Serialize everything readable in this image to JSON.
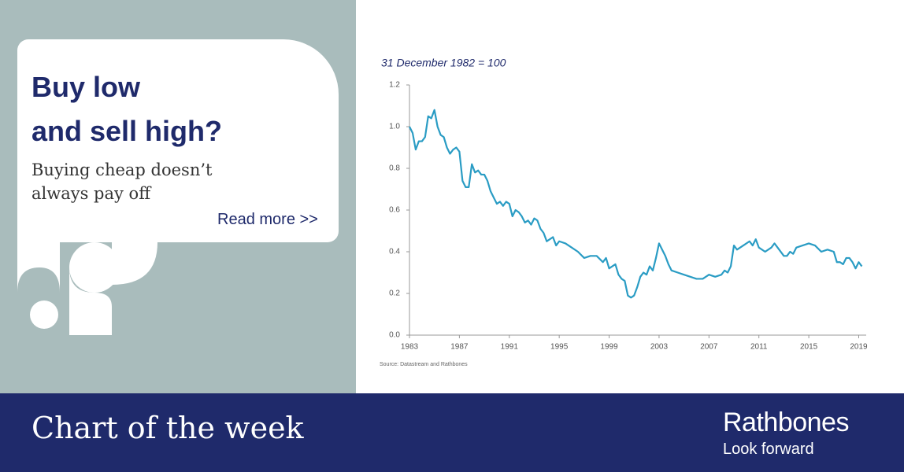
{
  "panel": {
    "headline": [
      "Buy low",
      "and sell high?"
    ],
    "subhead": [
      "Buying cheap doesn’t",
      "always pay off"
    ],
    "link": "Read more >>"
  },
  "footer": {
    "title": "Chart of the week",
    "brand": "Rathbones",
    "tagline": "Look forward"
  },
  "chart_data": {
    "type": "line",
    "subtitle": "31 December 1982 = 100",
    "source": "Source: Datastream and Rathbones",
    "color": "#2a9cc4",
    "x": [
      1983.0,
      1983.25,
      1983.5,
      1983.75,
      1984.0,
      1984.25,
      1984.5,
      1984.75,
      1985.0,
      1985.25,
      1985.5,
      1985.75,
      1986.0,
      1986.25,
      1986.5,
      1986.75,
      1987.0,
      1987.25,
      1987.5,
      1987.75,
      1988.0,
      1988.25,
      1988.5,
      1988.75,
      1989.0,
      1989.25,
      1989.5,
      1989.75,
      1990.0,
      1990.25,
      1990.5,
      1990.75,
      1991.0,
      1991.25,
      1991.5,
      1991.75,
      1992.0,
      1992.25,
      1992.5,
      1992.75,
      1993.0,
      1993.25,
      1993.5,
      1993.75,
      1994.0,
      1994.25,
      1994.5,
      1994.75,
      1995.0,
      1995.5,
      1996.0,
      1996.5,
      1997.0,
      1997.5,
      1998.0,
      1998.5,
      1998.75,
      1999.0,
      1999.5,
      1999.75,
      2000.0,
      2000.25,
      2000.5,
      2000.75,
      2001.0,
      2001.25,
      2001.5,
      2001.75,
      2002.0,
      2002.25,
      2002.5,
      2002.75,
      2003.0,
      2003.25,
      2003.5,
      2003.75,
      2004.0,
      2004.5,
      2005.0,
      2005.5,
      2006.0,
      2006.5,
      2007.0,
      2007.5,
      2008.0,
      2008.25,
      2008.5,
      2008.75,
      2009.0,
      2009.25,
      2009.75,
      2010.25,
      2010.5,
      2010.75,
      2011.0,
      2011.5,
      2012.0,
      2012.25,
      2012.5,
      2013.0,
      2013.25,
      2013.5,
      2013.75,
      2014.0,
      2014.5,
      2015.0,
      2015.5,
      2016.0,
      2016.5,
      2017.0,
      2017.25,
      2017.5,
      2017.75,
      2018.0,
      2018.25,
      2018.5,
      2018.75,
      2019.0,
      2019.25
    ],
    "values": [
      1.0,
      0.97,
      0.89,
      0.93,
      0.93,
      0.95,
      1.05,
      1.04,
      1.08,
      1.0,
      0.96,
      0.95,
      0.9,
      0.87,
      0.89,
      0.9,
      0.88,
      0.74,
      0.71,
      0.71,
      0.82,
      0.78,
      0.79,
      0.77,
      0.77,
      0.74,
      0.69,
      0.66,
      0.63,
      0.64,
      0.62,
      0.64,
      0.63,
      0.57,
      0.6,
      0.59,
      0.57,
      0.54,
      0.55,
      0.53,
      0.56,
      0.55,
      0.51,
      0.49,
      0.45,
      0.46,
      0.47,
      0.43,
      0.45,
      0.44,
      0.42,
      0.4,
      0.37,
      0.38,
      0.38,
      0.35,
      0.37,
      0.32,
      0.34,
      0.29,
      0.27,
      0.26,
      0.19,
      0.18,
      0.19,
      0.23,
      0.28,
      0.3,
      0.29,
      0.33,
      0.31,
      0.37,
      0.44,
      0.41,
      0.38,
      0.34,
      0.31,
      0.3,
      0.29,
      0.28,
      0.27,
      0.27,
      0.29,
      0.28,
      0.29,
      0.31,
      0.3,
      0.33,
      0.43,
      0.41,
      0.43,
      0.45,
      0.43,
      0.46,
      0.42,
      0.4,
      0.42,
      0.44,
      0.42,
      0.38,
      0.38,
      0.4,
      0.39,
      0.42,
      0.43,
      0.44,
      0.43,
      0.4,
      0.41,
      0.4,
      0.35,
      0.35,
      0.34,
      0.37,
      0.37,
      0.35,
      0.32,
      0.35,
      0.33
    ],
    "xlim": [
      1983,
      2019.6
    ],
    "xticks": [
      1983,
      1987,
      1991,
      1995,
      1999,
      2003,
      2007,
      2011,
      2015,
      2019
    ],
    "ylim": [
      0,
      1.2
    ],
    "yticks": [
      {
        "value": 0,
        "label": "0.0"
      },
      0.2,
      0.4,
      0.6,
      0.8,
      {
        "value": 1,
        "label": "1.0"
      },
      1.2
    ]
  }
}
